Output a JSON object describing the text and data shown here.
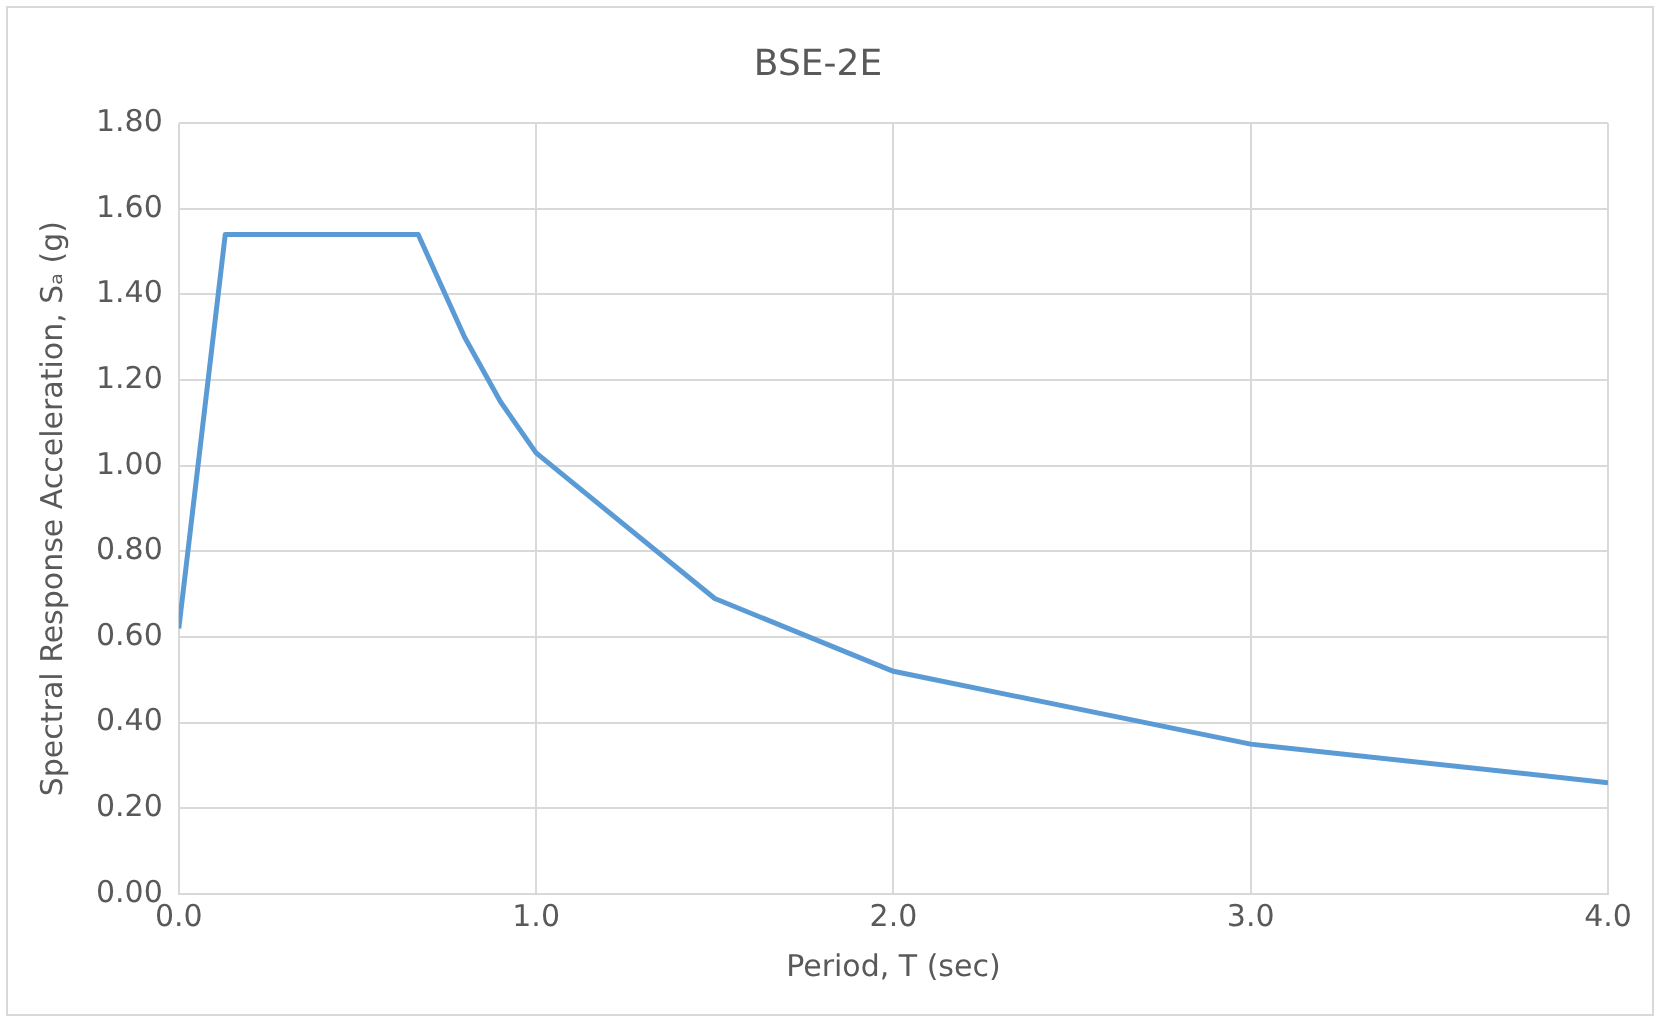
{
  "chart_data": {
    "type": "line",
    "title": "BSE-2E",
    "xlabel": "Period, T (sec)",
    "ylabel": "Spectral Response Acceleration, Sₐ (g)",
    "x": [
      0,
      0.13,
      0.67,
      0.8,
      0.9,
      1.0,
      1.5,
      2.0,
      3.0,
      4.0
    ],
    "series": [
      {
        "color": "#5b9bd5",
        "values": [
          0.62,
          1.54,
          1.54,
          1.3,
          1.15,
          1.03,
          0.69,
          0.52,
          0.35,
          0.26
        ]
      }
    ],
    "xlim": [
      0,
      4
    ],
    "xticks": [
      {
        "value": 0,
        "label": "0.0"
      },
      {
        "value": 1,
        "label": "1.0"
      },
      {
        "value": 2,
        "label": "2.0"
      },
      {
        "value": 3,
        "label": "3.0"
      },
      {
        "value": 4,
        "label": "4.0"
      }
    ],
    "ylim": [
      0,
      1.8
    ],
    "yticks": [
      {
        "value": 0,
        "label": "0.00"
      },
      {
        "value": 0.2,
        "label": "0.20"
      },
      {
        "value": 0.4,
        "label": "0.40"
      },
      {
        "value": 0.6,
        "label": "0.60"
      },
      {
        "value": 0.8,
        "label": "0.80"
      },
      {
        "value": 1,
        "label": "1.00"
      },
      {
        "value": 1.2,
        "label": "1.20"
      },
      {
        "value": 1.4,
        "label": "1.40"
      },
      {
        "value": 1.6,
        "label": "1.60"
      },
      {
        "value": 1.8,
        "label": "1.80"
      }
    ],
    "grid": true,
    "legend": false,
    "marker": "none",
    "line_style": "solid"
  }
}
